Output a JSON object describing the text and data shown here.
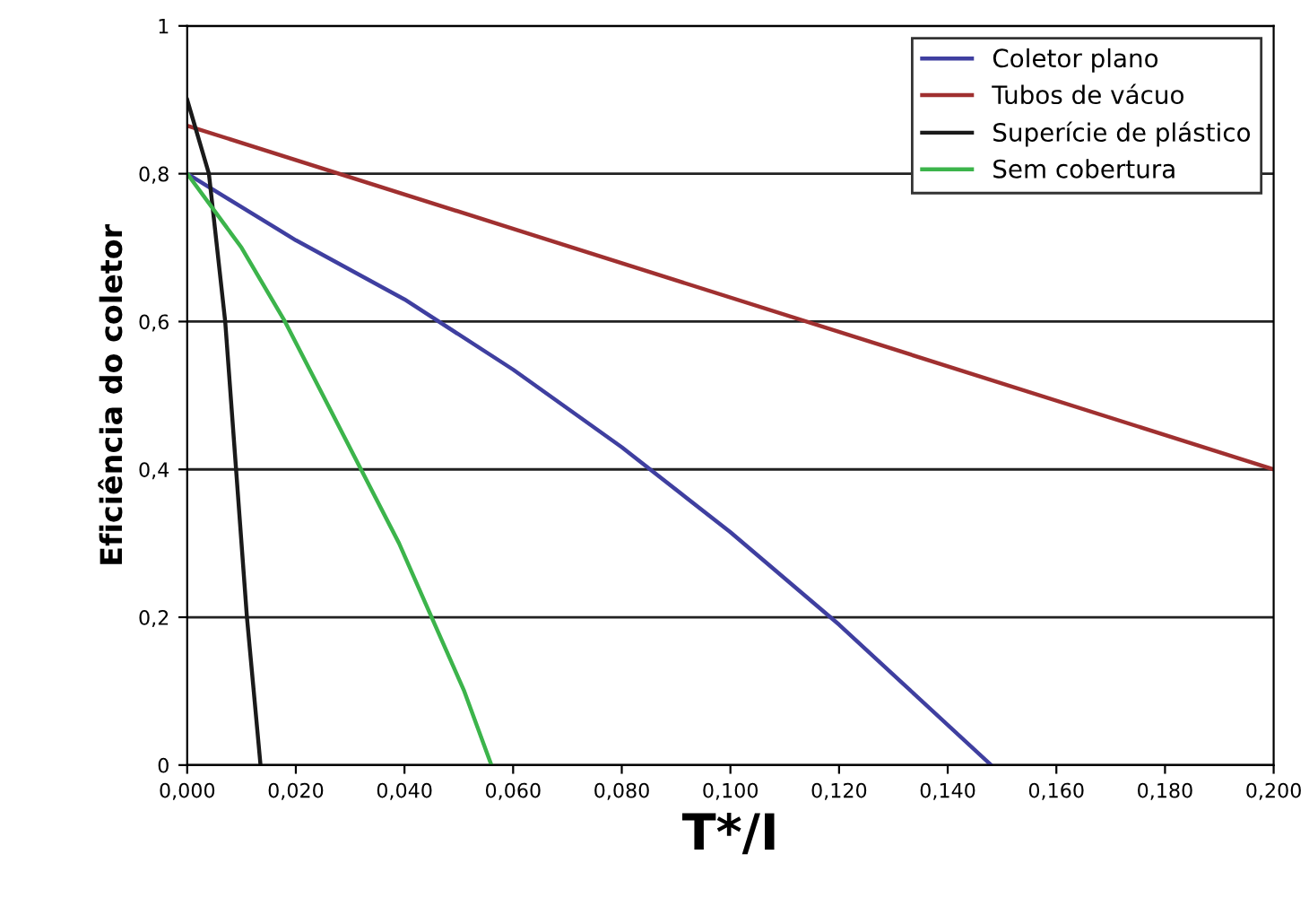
{
  "chart_data": {
    "type": "line",
    "xlabel": "T*/I",
    "ylabel": "Eficiência do coletor",
    "xlim": [
      0,
      0.2
    ],
    "ylim": [
      0,
      1
    ],
    "xticks": [
      {
        "value": 0,
        "label": "0,000"
      },
      {
        "value": 0.02,
        "label": "0,020"
      },
      {
        "value": 0.04,
        "label": "0,040"
      },
      {
        "value": 0.06,
        "label": "0,060"
      },
      {
        "value": 0.08,
        "label": "0,080"
      },
      {
        "value": 0.1,
        "label": "0,100"
      },
      {
        "value": 0.12,
        "label": "0,120"
      },
      {
        "value": 0.14,
        "label": "0,140"
      },
      {
        "value": 0.16,
        "label": "0,160"
      },
      {
        "value": 0.18,
        "label": "0,180"
      },
      {
        "value": 0.2,
        "label": "0,200"
      }
    ],
    "yticks": [
      0,
      {
        "value": 0.2,
        "label": "0,2"
      },
      {
        "value": 0.4,
        "label": "0,4"
      },
      {
        "value": 0.6,
        "label": "0,6"
      },
      {
        "value": 0.8,
        "label": "0,8"
      },
      1
    ],
    "grid": "y",
    "legend": "top right",
    "marker": "none",
    "line_style": "solid",
    "series": [
      {
        "name": "Coletor plano",
        "color": "#3f3fa0",
        "x": [
          0,
          0.02,
          0.04,
          0.06,
          0.08,
          0.1,
          0.12,
          0.148
        ],
        "values": [
          0.8,
          0.71,
          0.63,
          0.535,
          0.43,
          0.315,
          0.19,
          0
        ]
      },
      {
        "name": "Tubos de vácuo",
        "color": "#a03030",
        "x": [
          0,
          0.2
        ],
        "values": [
          0.865,
          0.4
        ]
      },
      {
        "name": "Superície de plástico",
        "color": "#1a1a1a",
        "x": [
          0,
          0.004,
          0.007,
          0.009,
          0.011,
          0.0135
        ],
        "values": [
          0.9,
          0.8,
          0.6,
          0.4,
          0.2,
          0
        ]
      },
      {
        "name": "Sem cobertura",
        "color": "#3cb44b",
        "x": [
          0,
          0.01,
          0.018,
          0.025,
          0.032,
          0.039,
          0.045,
          0.051,
          0.056
        ],
        "values": [
          0.8,
          0.7,
          0.6,
          0.5,
          0.4,
          0.3,
          0.2,
          0.1,
          0
        ]
      }
    ]
  }
}
